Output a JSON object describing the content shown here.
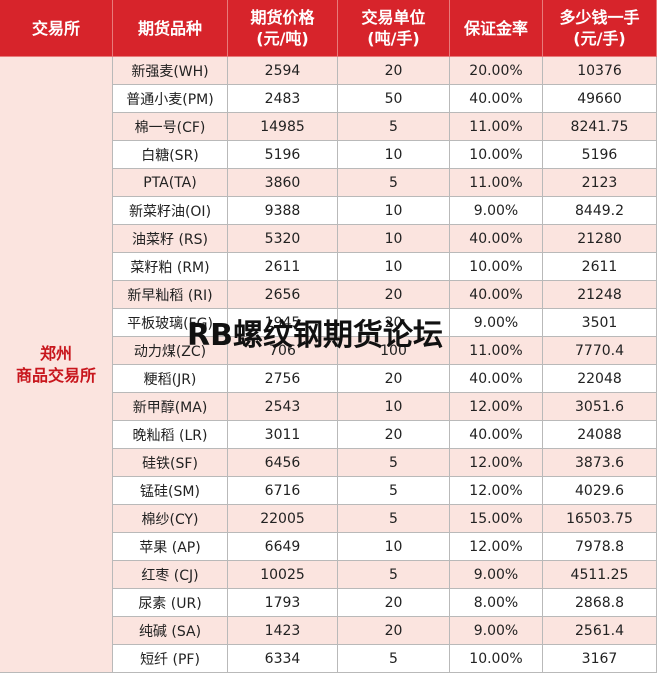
{
  "table": {
    "header": [
      "交易所",
      "期货品种",
      "期货价格\n(元/吨)",
      "交易单位\n(吨/手)",
      "保证金率",
      "多少钱一手\n(元/手)"
    ],
    "exchange": "郑州\n商品交易所",
    "rows": [
      [
        "新强麦(WH)",
        "2594",
        "20",
        "20.00%",
        "10376"
      ],
      [
        "普通小麦(PM)",
        "2483",
        "50",
        "40.00%",
        "49660"
      ],
      [
        "棉一号(CF)",
        "14985",
        "5",
        "11.00%",
        "8241.75"
      ],
      [
        "白糖(SR)",
        "5196",
        "10",
        "10.00%",
        "5196"
      ],
      [
        "PTA(TA)",
        "3860",
        "5",
        "11.00%",
        "2123"
      ],
      [
        "新菜籽油(OI)",
        "9388",
        "10",
        "9.00%",
        "8449.2"
      ],
      [
        "油菜籽 (RS)",
        "5320",
        "10",
        "40.00%",
        "21280"
      ],
      [
        "菜籽粕 (RM)",
        "2611",
        "10",
        "10.00%",
        "2611"
      ],
      [
        "新早籼稻 (RI)",
        "2656",
        "20",
        "40.00%",
        "21248"
      ],
      [
        "平板玻璃(FG)",
        "1945",
        "20",
        "9.00%",
        "3501"
      ],
      [
        "动力煤(ZC)",
        "706",
        "100",
        "11.00%",
        "7770.4"
      ],
      [
        "粳稻(JR)",
        "2756",
        "20",
        "40.00%",
        "22048"
      ],
      [
        "新甲醇(MA)",
        "2543",
        "10",
        "12.00%",
        "3051.6"
      ],
      [
        "晚籼稻 (LR)",
        "3011",
        "20",
        "40.00%",
        "24088"
      ],
      [
        "硅铁(SF)",
        "6456",
        "5",
        "12.00%",
        "3873.6"
      ],
      [
        "锰硅(SM)",
        "6716",
        "5",
        "12.00%",
        "4029.6"
      ],
      [
        "棉纱(CY)",
        "22005",
        "5",
        "15.00%",
        "16503.75"
      ],
      [
        "苹果 (AP)",
        "6649",
        "10",
        "12.00%",
        "7978.8"
      ],
      [
        "红枣 (CJ)",
        "10025",
        "5",
        "9.00%",
        "4511.25"
      ],
      [
        "尿素 (UR)",
        "1793",
        "20",
        "8.00%",
        "2868.8"
      ],
      [
        "纯碱 (SA)",
        "1423",
        "20",
        "9.00%",
        "2561.4"
      ],
      [
        "短纤 (PF)",
        "6334",
        "5",
        "10.00%",
        "3167"
      ]
    ]
  },
  "watermark": "RB螺纹钢期货论坛"
}
